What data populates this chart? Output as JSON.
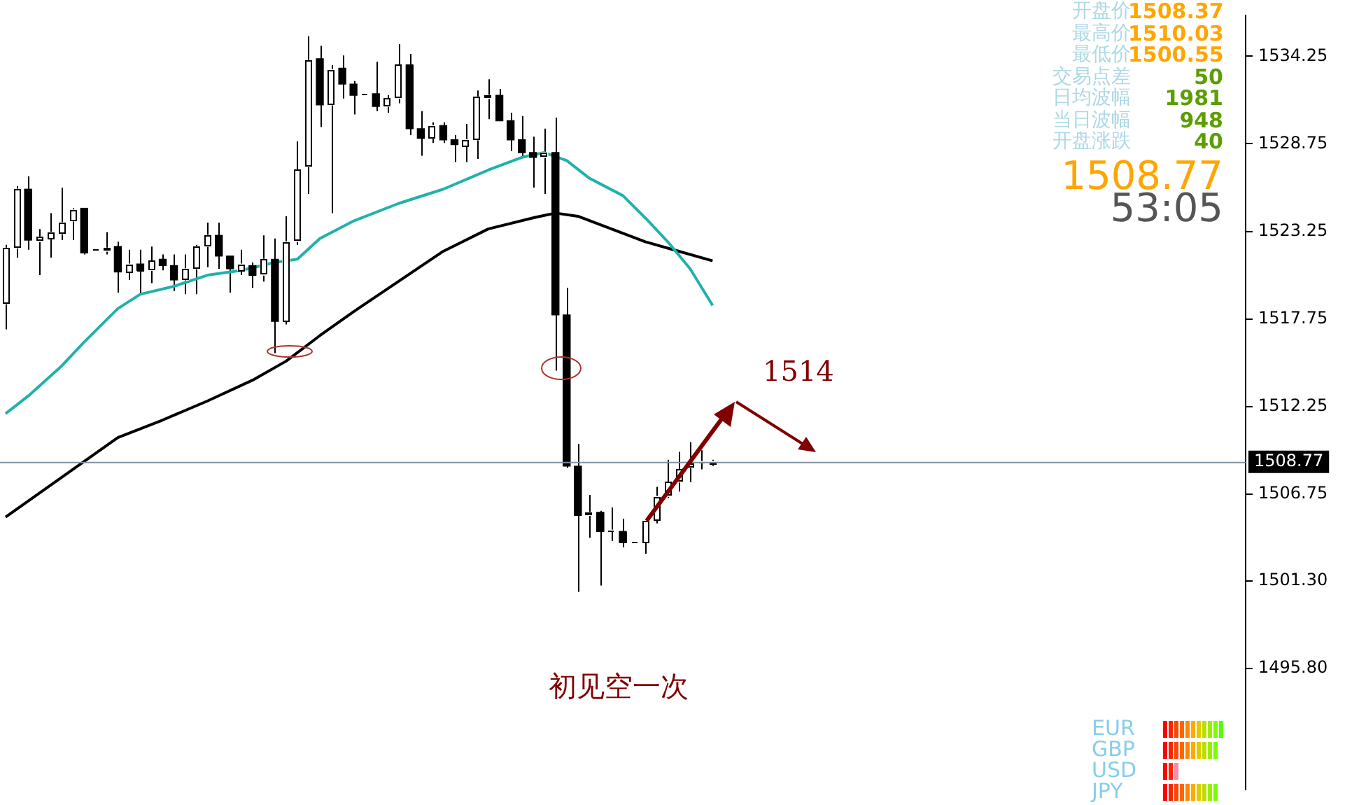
{
  "chart_data": {
    "type": "candlestick",
    "color": "#000000",
    "categories": [
      null,
      null,
      null,
      null,
      null,
      null,
      null,
      null,
      null,
      null,
      null,
      null,
      null,
      null,
      null,
      null,
      null,
      null,
      null,
      null,
      null,
      null,
      null,
      null,
      null,
      null,
      null,
      null,
      null,
      null,
      null,
      null,
      null,
      null,
      null,
      null,
      null,
      null,
      null,
      null,
      null,
      null,
      null,
      null,
      null,
      null,
      null,
      null,
      null,
      null,
      null,
      null,
      null,
      null,
      null,
      null,
      null,
      null,
      null,
      null,
      null,
      null,
      null,
      null,
      null,
      null,
      null,
      null,
      null,
      null,
      null,
      null,
      null,
      null,
      null,
      null,
      null,
      null,
      null,
      null,
      null,
      null,
      null,
      null,
      null,
      null,
      null,
      null,
      null,
      null,
      null,
      null,
      null,
      null,
      null,
      null,
      null,
      null,
      null,
      null,
      null,
      null,
      null,
      null,
      null,
      null,
      null,
      null,
      null,
      null,
      null
    ],
    "ohlc": [
      [
        1518.7,
        1522.4,
        1517.1,
        1522.2
      ],
      [
        1522.2,
        1526.1,
        1521.6,
        1525.9
      ],
      [
        1525.9,
        1526.7,
        1522.1,
        1522.7
      ],
      [
        1522.6,
        1523.4,
        1520.5,
        1522.9
      ],
      [
        1522.8,
        1524.4,
        1521.6,
        1523.2
      ],
      [
        1523.1,
        1526.0,
        1522.7,
        1523.8
      ],
      [
        1523.9,
        1524.7,
        1522.7,
        1524.6
      ],
      [
        1524.7,
        1524.7,
        1521.8,
        1521.9
      ],
      [
        1522.0,
        1522.0,
        1522.0,
        1522.0
      ],
      [
        1522.0,
        1523.2,
        1521.8,
        1522.2
      ],
      [
        1522.3,
        1522.6,
        1519.4,
        1520.7
      ],
      [
        1520.7,
        1522.1,
        1520.2,
        1521.2
      ],
      [
        1521.2,
        1522.1,
        1519.3,
        1520.8
      ],
      [
        1520.8,
        1522.3,
        1520.0,
        1521.4
      ],
      [
        1521.5,
        1521.8,
        1520.8,
        1521.1
      ],
      [
        1521.1,
        1521.8,
        1519.5,
        1520.2
      ],
      [
        1520.2,
        1521.8,
        1519.3,
        1520.9
      ],
      [
        1520.9,
        1522.4,
        1519.3,
        1522.3
      ],
      [
        1522.3,
        1523.8,
        1521.0,
        1523.0
      ],
      [
        1523.0,
        1523.8,
        1520.9,
        1521.7
      ],
      [
        1521.7,
        1521.7,
        1519.4,
        1520.9
      ],
      [
        1520.8,
        1522.1,
        1520.5,
        1521.2
      ],
      [
        1521.1,
        1521.3,
        1519.7,
        1520.5
      ],
      [
        1520.5,
        1523.0,
        1520.1,
        1521.5
      ],
      [
        1521.5,
        1522.8,
        1515.6,
        1517.6
      ],
      [
        1517.6,
        1524.2,
        1517.4,
        1522.6
      ],
      [
        1522.6,
        1528.9,
        1522.4,
        1527.1
      ],
      [
        1527.3,
        1535.5,
        1525.6,
        1534.0
      ],
      [
        1534.1,
        1534.9,
        1529.8,
        1531.2
      ],
      [
        1531.2,
        1533.7,
        1524.4,
        1533.4
      ],
      [
        1533.5,
        1534.3,
        1531.6,
        1532.5
      ],
      [
        1532.5,
        1532.7,
        1530.6,
        1531.8
      ],
      [
        1531.8,
        1531.8,
        1531.8,
        1531.8
      ],
      [
        1531.9,
        1533.9,
        1530.8,
        1531.1
      ],
      [
        1531.1,
        1531.8,
        1530.7,
        1531.6
      ],
      [
        1531.6,
        1535.0,
        1531.3,
        1533.7
      ],
      [
        1533.7,
        1534.4,
        1529.3,
        1529.7
      ],
      [
        1529.7,
        1530.8,
        1528.0,
        1529.1
      ],
      [
        1529.1,
        1530.1,
        1528.8,
        1529.9
      ],
      [
        1529.9,
        1530.1,
        1528.8,
        1529.0
      ],
      [
        1529.0,
        1529.3,
        1527.6,
        1528.7
      ],
      [
        1528.6,
        1530.0,
        1527.6,
        1529.0
      ],
      [
        1529.0,
        1532.1,
        1527.8,
        1531.7
      ],
      [
        1531.6,
        1532.8,
        1530.3,
        1531.8
      ],
      [
        1531.8,
        1532.2,
        1530.2,
        1530.2
      ],
      [
        1530.2,
        1530.7,
        1528.3,
        1529.0
      ],
      [
        1529.0,
        1530.5,
        1527.9,
        1528.2
      ],
      [
        1528.2,
        1529.2,
        1526.0,
        1527.9
      ],
      [
        1527.9,
        1529.7,
        1525.6,
        1528.2
      ],
      [
        1528.2,
        1530.4,
        1514.5,
        1518.0
      ],
      [
        1518.0,
        1519.7,
        1508.4,
        1508.5
      ],
      [
        1508.5,
        1509.9,
        1500.6,
        1505.4
      ],
      [
        1505.4,
        1506.7,
        1504.0,
        1505.6
      ],
      [
        1505.6,
        1505.7,
        1501.0,
        1504.4
      ],
      [
        1504.4,
        1505.9,
        1503.8,
        1504.4
      ],
      [
        1504.4,
        1505.2,
        1503.4,
        1503.7
      ],
      [
        1503.7,
        1503.7,
        1503.7,
        1503.7
      ],
      [
        1503.7,
        1505.1,
        1503.0,
        1505.1
      ],
      [
        1505.1,
        1507.2,
        1504.9,
        1506.6
      ],
      [
        1506.6,
        1508.9,
        1506.5,
        1507.5
      ],
      [
        1507.5,
        1509.4,
        1506.9,
        1508.3
      ],
      [
        1508.4,
        1510.0,
        1507.5,
        1508.7
      ],
      [
        1508.7,
        1509.5,
        1508.3,
        1508.7
      ],
      [
        1508.6,
        1508.9,
        1508.5,
        1508.8
      ],
      null,
      null,
      null,
      null,
      null,
      null,
      null,
      null,
      null,
      null,
      null,
      null,
      null,
      null,
      null,
      null,
      null,
      null,
      null,
      null,
      null,
      null,
      null,
      null,
      null,
      null,
      null,
      null,
      null,
      null,
      null,
      null,
      null,
      null,
      null,
      null,
      null,
      null,
      null,
      null,
      null,
      null,
      null,
      null,
      null,
      null,
      null
    ],
    "colors": [
      "#ffffff",
      "#ffffff",
      "#000000",
      "#ffffff",
      "#ffffff",
      "#ffffff",
      "#ffffff",
      "#000000",
      "#ffffff",
      "#ffffff",
      "#000000",
      "#ffffff",
      "#000000",
      "#ffffff",
      "#000000",
      "#000000",
      "#ffffff",
      "#ffffff",
      "#ffffff",
      "#000000",
      "#000000",
      "#ffffff",
      "#000000",
      "#ffffff",
      "#000000",
      "#ffffff",
      "#ffffff",
      "#ffffff",
      "#000000",
      "#ffffff",
      "#000000",
      "#000000",
      "#ffffff",
      "#000000",
      "#ffffff",
      "#ffffff",
      "#000000",
      "#000000",
      "#ffffff",
      "#000000",
      "#000000",
      "#ffffff",
      "#ffffff",
      "#ffffff",
      "#000000",
      "#000000",
      "#000000",
      "#000000",
      "#ffffff",
      "#000000",
      "#000000",
      "#000000",
      "#ffffff",
      "#000000",
      "#ffffff",
      "#000000",
      "#ffffff",
      "#ffffff",
      "#ffffff",
      "#ffffff",
      "#ffffff",
      "#ffffff",
      "#ffffff",
      "#ffffff",
      null,
      null,
      null,
      null,
      null,
      null,
      null,
      null,
      null,
      null,
      null,
      null,
      null,
      null,
      null,
      null,
      null,
      null,
      null,
      null,
      null,
      null,
      null,
      null,
      null,
      null,
      null,
      null,
      null,
      null,
      null,
      null,
      null,
      null,
      null,
      null,
      null,
      null,
      null,
      null,
      null,
      null,
      null,
      null,
      null,
      null,
      null
    ],
    "series": [
      {
        "type": "line",
        "color": "#20b2aa",
        "values": [
          1511.8,
          null,
          1512.9,
          null,
          null,
          1514.8,
          null,
          1516.3,
          null,
          null,
          1518.4,
          null,
          1519.3,
          null,
          null,
          1519.8,
          null,
          null,
          1520.5,
          null,
          null,
          1520.8,
          null,
          null,
          1521.3,
          null,
          1521.5,
          null,
          1522.8,
          null,
          null,
          1523.9,
          null,
          null,
          null,
          1525.0,
          null,
          null,
          null,
          1525.9,
          null,
          null,
          null,
          1527.1,
          null,
          null,
          1527.9,
          null,
          1528.2,
          null,
          1527.7,
          null,
          1526.6,
          null,
          null,
          1525.5,
          null,
          1524.1,
          null,
          1522.6,
          null,
          1520.9,
          null,
          1518.6,
          null,
          null,
          null,
          null,
          null,
          null,
          null,
          null,
          null,
          null,
          null,
          null,
          null,
          null,
          null,
          null,
          null,
          null,
          null,
          null,
          null,
          null,
          null,
          null,
          null,
          null,
          null,
          null,
          null,
          null,
          null,
          null,
          null,
          null,
          null,
          null,
          null,
          null,
          null,
          null,
          null,
          null,
          null,
          null,
          null,
          null,
          null
        ]
      },
      {
        "type": "line",
        "color": "#000000",
        "values": [
          1505.3,
          null,
          null,
          null,
          null,
          1507.8,
          null,
          null,
          null,
          null,
          1510.3,
          null,
          null,
          null,
          1511.4,
          null,
          null,
          null,
          1512.6,
          null,
          null,
          null,
          1513.9,
          null,
          null,
          1515.1,
          null,
          null,
          1516.7,
          null,
          null,
          1518.2,
          null,
          null,
          null,
          1520.1,
          null,
          null,
          null,
          1522.0,
          null,
          null,
          null,
          1523.4,
          null,
          null,
          null,
          1524.1,
          null,
          1524.4,
          null,
          1524.2,
          null,
          null,
          1523.4,
          null,
          null,
          1522.6,
          null,
          null,
          1522.0,
          null,
          null,
          1521.4,
          null,
          null,
          null,
          null,
          null,
          null,
          null,
          null,
          null,
          null,
          null,
          null,
          null,
          null,
          null,
          null,
          null,
          null,
          null,
          null,
          null,
          null,
          null,
          null,
          null,
          null,
          null,
          null,
          null,
          null,
          null,
          null,
          null,
          null,
          null,
          null,
          null,
          null,
          null,
          null,
          null,
          null,
          null,
          null,
          null,
          null,
          null
        ]
      }
    ],
    "ylim": [
      1488.2,
      1536.8
    ],
    "yticks": [
      1534.25,
      1528.75,
      1523.25,
      1517.75,
      1512.25,
      1506.75,
      {
        "value": 1501.3,
        "label": "1501.30"
      },
      {
        "value": 1495.8,
        "label": "1495.80"
      }
    ],
    "tick_labels": "y",
    "grid": false,
    "legend": false,
    "marker": "none",
    "line_style": "solid",
    "ref_lines": [
      {
        "axis": "y",
        "value": 1508.77,
        "label": "1508.77",
        "color": "#8090a0"
      }
    ],
    "annotations": [
      "1514",
      "初见空一次",
      "开盘价",
      "1508.37",
      "最高价",
      "1510.03",
      "最低价",
      "1500.55",
      "交易点差",
      "50",
      "日均波幅",
      "1981",
      "当日波幅",
      "948",
      "开盘涨跌",
      "40",
      "1508.77",
      "53:05",
      "EUR",
      "GBP",
      "USD",
      "JPY"
    ]
  }
}
